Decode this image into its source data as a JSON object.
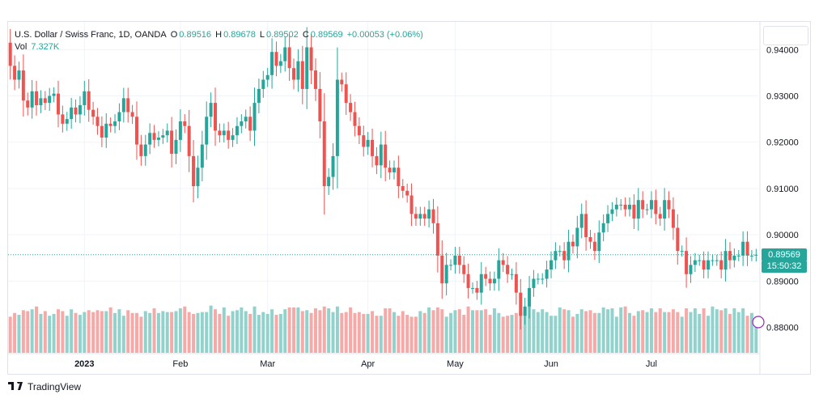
{
  "legend": {
    "symbol": "U.S. Dollar / Swiss Franc, 1D, OANDA",
    "o_label": "O",
    "o_value": "0.89516",
    "h_label": "H",
    "h_value": "0.89678",
    "l_label": "L",
    "l_value": "0.89502",
    "c_label": "C",
    "c_value": "0.89569",
    "change": "+0.00053 (+0.06%)",
    "vol_label": "Vol",
    "vol_value": "7.327K"
  },
  "last_price": {
    "value": "0.89569",
    "countdown": "15:50:32"
  },
  "brand": {
    "name": "TradingView"
  },
  "colors": {
    "up": "#26a69a",
    "down": "#ef5350",
    "up_vol": "#92d2cc",
    "down_vol": "#f7a9a7",
    "grid": "#f0f3fa",
    "last_line": "#26a69a"
  },
  "chart_data": {
    "type": "candlestick",
    "ylim": [
      0.8745,
      0.946
    ],
    "y_ticks": [
      0.94,
      0.93,
      0.92,
      0.91,
      0.9,
      0.89,
      0.88
    ],
    "y_tick_labels": [
      "0.94000",
      "0.93000",
      "0.92000",
      "0.91000",
      "0.90000",
      "0.89000",
      "0.88000"
    ],
    "x_labels": [
      {
        "label": "2023",
        "bar": 17
      },
      {
        "label": "Feb",
        "bar": 39
      },
      {
        "label": "Mar",
        "bar": 59
      },
      {
        "label": "Apr",
        "bar": 82
      },
      {
        "label": "May",
        "bar": 102
      },
      {
        "label": "Jun",
        "bar": 124
      },
      {
        "label": "Jul",
        "bar": 147
      }
    ],
    "last_close": 0.89569,
    "close": [
      0.9365,
      0.9335,
      0.9355,
      0.929,
      0.9275,
      0.931,
      0.928,
      0.9295,
      0.9285,
      0.93,
      0.9305,
      0.926,
      0.924,
      0.925,
      0.9275,
      0.926,
      0.928,
      0.931,
      0.927,
      0.9255,
      0.9235,
      0.921,
      0.924,
      0.9235,
      0.9245,
      0.9265,
      0.9295,
      0.9265,
      0.9255,
      0.9195,
      0.917,
      0.9195,
      0.922,
      0.9205,
      0.921,
      0.9215,
      0.9225,
      0.9175,
      0.9205,
      0.9245,
      0.9235,
      0.917,
      0.9105,
      0.9145,
      0.9195,
      0.9255,
      0.9285,
      0.9225,
      0.9215,
      0.9225,
      0.9205,
      0.9215,
      0.9235,
      0.9245,
      0.9255,
      0.9225,
      0.9285,
      0.9315,
      0.9335,
      0.9345,
      0.9395,
      0.9365,
      0.9375,
      0.9405,
      0.936,
      0.9335,
      0.9375,
      0.9315,
      0.9405,
      0.9355,
      0.9315,
      0.9245,
      0.9105,
      0.9125,
      0.917,
      0.9335,
      0.9325,
      0.9285,
      0.9265,
      0.9235,
      0.9215,
      0.919,
      0.9205,
      0.917,
      0.915,
      0.9195,
      0.9145,
      0.9135,
      0.9145,
      0.9105,
      0.9095,
      0.9085,
      0.9045,
      0.9035,
      0.9045,
      0.9035,
      0.9055,
      0.9025,
      0.8955,
      0.8895,
      0.8935,
      0.8935,
      0.8955,
      0.8935,
      0.8915,
      0.8885,
      0.8885,
      0.8875,
      0.8915,
      0.8905,
      0.8895,
      0.8905,
      0.8945,
      0.8935,
      0.8915,
      0.8915,
      0.8875,
      0.8825,
      0.8845,
      0.8885,
      0.8905,
      0.8905,
      0.8905,
      0.8925,
      0.8945,
      0.8965,
      0.8965,
      0.8945,
      0.8985,
      0.8975,
      0.9015,
      0.9045,
      0.8995,
      0.8985,
      0.8965,
      0.9005,
      0.9025,
      0.9045,
      0.9055,
      0.9065,
      0.9065,
      0.9055,
      0.9065,
      0.9035,
      0.9075,
      0.9055,
      0.9055,
      0.9075,
      0.9045,
      0.9035,
      0.9075,
      0.9055,
      0.9015,
      0.8965,
      0.8965,
      0.8915,
      0.8935,
      0.8945,
      0.8945,
      0.8925,
      0.8945,
      0.8945,
      0.8945,
      0.8925,
      0.8965,
      0.8945,
      0.8955,
      0.8955,
      0.8985,
      0.8955,
      0.8955,
      0.89569
    ],
    "volume_scale": [
      0.39,
      0.43,
      0.41,
      0.46,
      0.45,
      0.47,
      0.5,
      0.42,
      0.45,
      0.4,
      0.42,
      0.47,
      0.45,
      0.4,
      0.47,
      0.43,
      0.41,
      0.44,
      0.46,
      0.44,
      0.46,
      0.45,
      0.45,
      0.49,
      0.43,
      0.47,
      0.4,
      0.46,
      0.43,
      0.43,
      0.39,
      0.45,
      0.43,
      0.48,
      0.43,
      0.45,
      0.44,
      0.44,
      0.45,
      0.48,
      0.5,
      0.44,
      0.42,
      0.43,
      0.44,
      0.44,
      0.51,
      0.47,
      0.42,
      0.49,
      0.4,
      0.45,
      0.46,
      0.49,
      0.45,
      0.42,
      0.5,
      0.41,
      0.44,
      0.42,
      0.47,
      0.41,
      0.42,
      0.47,
      0.49,
      0.49,
      0.49,
      0.45,
      0.46,
      0.43,
      0.48,
      0.46,
      0.5,
      0.48,
      0.44,
      0.5,
      0.43,
      0.44,
      0.49,
      0.43,
      0.44,
      0.42,
      0.42,
      0.45,
      0.4,
      0.4,
      0.48,
      0.48,
      0.44,
      0.4,
      0.45,
      0.41,
      0.39,
      0.39,
      0.45,
      0.43,
      0.49,
      0.46,
      0.49,
      0.47,
      0.39,
      0.43,
      0.46,
      0.47,
      0.41,
      0.5,
      0.46,
      0.46,
      0.46,
      0.47,
      0.41,
      0.48,
      0.43,
      0.39,
      0.4,
      0.41,
      0.43,
      0.45,
      0.46,
      0.5,
      0.47,
      0.44,
      0.47,
      0.44,
      0.4,
      0.4,
      0.49,
      0.47,
      0.46,
      0.39,
      0.42,
      0.47,
      0.45,
      0.46,
      0.43,
      0.43,
      0.49,
      0.47,
      0.48,
      0.39,
      0.49,
      0.5,
      0.43,
      0.4,
      0.45,
      0.46,
      0.44,
      0.48,
      0.44,
      0.48,
      0.44,
      0.44,
      0.47,
      0.44,
      0.39,
      0.48,
      0.44,
      0.48,
      0.42,
      0.48,
      0.4,
      0.5,
      0.47,
      0.46,
      0.48,
      0.42,
      0.48,
      0.44,
      0.48,
      0.4,
      0.43,
      0.39,
      0.46,
      0.5,
      0.39,
      0.44,
      0.45,
      0.48
    ]
  }
}
